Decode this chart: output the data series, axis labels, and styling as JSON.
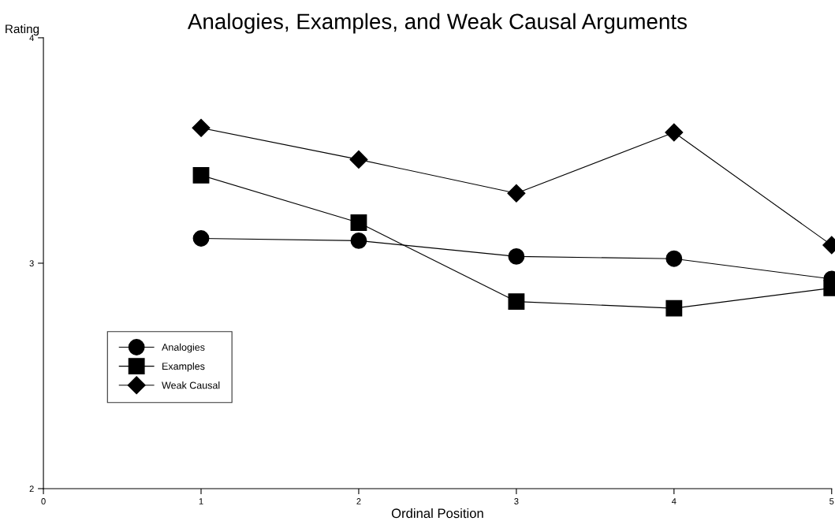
{
  "chart_data": {
    "type": "line",
    "title": "Analogies, Examples, and Weak Causal Arguments",
    "xlabel": "Ordinal Position",
    "ylabel": "Rating",
    "x": [
      1,
      2,
      3,
      4,
      5
    ],
    "series": [
      {
        "name": "Analogies",
        "color": "#000000",
        "marker": "circle",
        "values": [
          3.11,
          3.1,
          3.03,
          3.02,
          2.93
        ]
      },
      {
        "name": "Examples",
        "color": "#000000",
        "marker": "square",
        "values": [
          3.39,
          3.18,
          2.83,
          2.8,
          2.89
        ]
      },
      {
        "name": "Weak Causal",
        "color": "#000000",
        "marker": "diamond",
        "values": [
          3.6,
          3.46,
          3.31,
          3.58,
          3.08
        ]
      }
    ],
    "xlim": [
      0,
      5
    ],
    "xticks": [
      0,
      1,
      2,
      3,
      4,
      5
    ],
    "ylim": [
      2,
      4
    ],
    "yticks": [
      2,
      3,
      4
    ],
    "grid": false,
    "legend": "bottom left",
    "line_style": "solid"
  }
}
